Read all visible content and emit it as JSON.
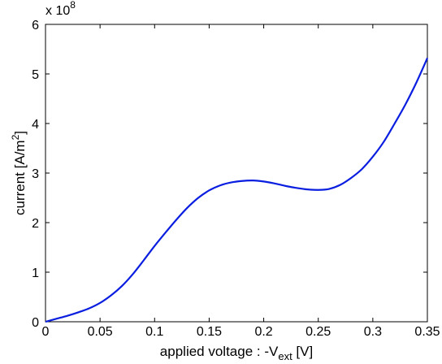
{
  "chart_data": {
    "type": "line",
    "xlabel": {
      "base": "applied voltage : -V",
      "sub": "ext",
      "unit": " [V]"
    },
    "ylabel": {
      "base": "current [A/m",
      "sup": "2",
      "close": "]"
    },
    "y_multiplier": {
      "prefix": "x 10",
      "exponent": "8"
    },
    "xlim": [
      0,
      0.35
    ],
    "ylim": [
      0,
      6
    ],
    "xticks": [
      0,
      0.05,
      0.1,
      0.15,
      0.2,
      0.25,
      0.3,
      0.35
    ],
    "xtick_labels": [
      "0",
      "0.05",
      "0.1",
      "0.15",
      "0.2",
      "0.25",
      "0.3",
      "0.35"
    ],
    "yticks": [
      0,
      1,
      2,
      3,
      4,
      5,
      6
    ],
    "ytick_labels": [
      "0",
      "1",
      "2",
      "3",
      "4",
      "5",
      "6"
    ],
    "grid": false,
    "series": [
      {
        "color": "#0a1ee0",
        "x": [
          0,
          0.01,
          0.02,
          0.03,
          0.04,
          0.05,
          0.06,
          0.07,
          0.08,
          0.09,
          0.1,
          0.11,
          0.12,
          0.13,
          0.14,
          0.15,
          0.16,
          0.17,
          0.18,
          0.19,
          0.2,
          0.21,
          0.22,
          0.23,
          0.24,
          0.25,
          0.26,
          0.27,
          0.28,
          0.29,
          0.3,
          0.31,
          0.32,
          0.33,
          0.34,
          0.35
        ],
        "y": [
          0.0,
          0.06,
          0.12,
          0.19,
          0.27,
          0.38,
          0.53,
          0.72,
          0.96,
          1.24,
          1.53,
          1.8,
          2.06,
          2.3,
          2.5,
          2.65,
          2.75,
          2.81,
          2.84,
          2.85,
          2.83,
          2.79,
          2.74,
          2.7,
          2.67,
          2.66,
          2.68,
          2.76,
          2.9,
          3.08,
          3.33,
          3.63,
          4.0,
          4.39,
          4.83,
          5.32
        ]
      }
    ]
  }
}
